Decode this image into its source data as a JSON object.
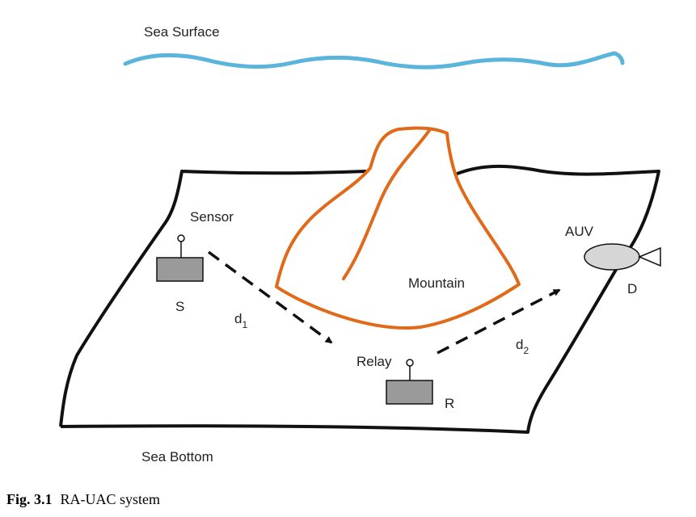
{
  "labels": {
    "sea_surface": "Sea Surface",
    "sea_bottom": "Sea Bottom",
    "sensor": "Sensor",
    "source_node": "S",
    "mountain": "Mountain",
    "auv": "AUV",
    "destination_node": "D",
    "relay": "Relay",
    "relay_node": "R",
    "d1_base": "d",
    "d1_sub": "1",
    "d2_base": "d",
    "d2_sub": "2"
  },
  "caption": {
    "number": "Fig. 3.1",
    "text": "RA-UAC system"
  },
  "colors": {
    "sea_surface": "#5ab4dc",
    "mountain": "#e06a1a",
    "outline": "#111111",
    "node_fill": "#9a9a9a",
    "auv_fill": "#d6d6d6"
  }
}
